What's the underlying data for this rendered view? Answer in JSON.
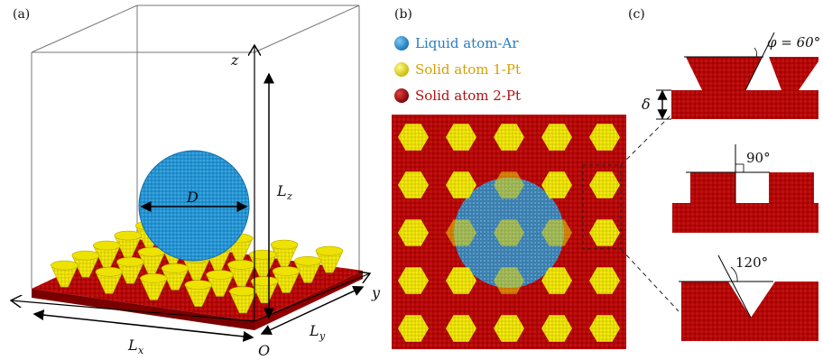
{
  "panels": {
    "a": {
      "label": "(a)"
    },
    "b": {
      "label": "(b)"
    },
    "c": {
      "label": "(c)"
    }
  },
  "panel_a": {
    "axis_z": "z",
    "axis_y": "y",
    "origin": "O",
    "diameter": "D",
    "length_z_main": "L",
    "length_z_sub": "z",
    "length_x_main": "L",
    "length_x_sub": "x",
    "length_y_main": "L",
    "length_y_sub": "y"
  },
  "legend": [
    {
      "label": "Liquid atom-Ar",
      "color": "#1e88c8",
      "text_color": "#2a7bbf"
    },
    {
      "label": "Solid atom 1-Pt",
      "color": "#f2e600",
      "text_color": "#d4a000"
    },
    {
      "label": "Solid atom 2-Pt",
      "color": "#a80000",
      "text_color": "#b01010"
    }
  ],
  "panel_c": {
    "delta": "δ",
    "angle_top": "φ = 60°",
    "angle_mid": "90°",
    "angle_bottom": "120°"
  },
  "colors": {
    "substrate": "#b00000",
    "substrate_dark": "#7a0000",
    "pillar": "#f2e600",
    "pillar_edge": "#b8a800",
    "droplet": "#1e90d0",
    "droplet_light": "#5ab6ea",
    "frame": "#777777"
  }
}
